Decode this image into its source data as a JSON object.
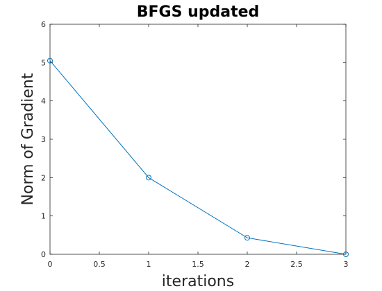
{
  "chart_data": {
    "type": "line",
    "title": "BFGS updated",
    "xlabel": "iterations",
    "ylabel": "Norm of Gradient",
    "xlim": [
      0,
      3
    ],
    "ylim": [
      0,
      6
    ],
    "x_ticks": [
      0,
      0.5,
      1,
      1.5,
      2,
      2.5,
      3
    ],
    "x_tick_labels": [
      "0",
      "0.5",
      "1",
      "1.5",
      "2",
      "2.5",
      "3"
    ],
    "y_ticks": [
      0,
      1,
      2,
      3,
      4,
      5,
      6
    ],
    "y_tick_labels": [
      "0",
      "1",
      "2",
      "3",
      "4",
      "5",
      "6"
    ],
    "grid": false,
    "marker": "circle",
    "series": [
      {
        "x": [
          0,
          1,
          2,
          3
        ],
        "values": [
          5.05,
          2.0,
          0.43,
          0.0
        ],
        "color": "#0072BD"
      }
    ]
  }
}
